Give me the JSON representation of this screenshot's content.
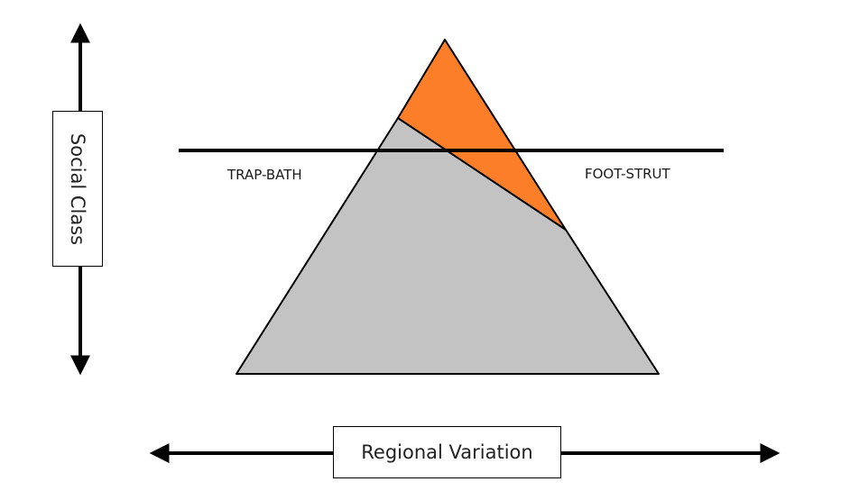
{
  "diagram": {
    "y_axis_label": "Social Class",
    "x_axis_label": "Regional Variation",
    "left_region_label": "TRAP-BATH",
    "right_region_label": "FOOT-STRUT",
    "colors": {
      "triangle_fill": "#c3c3c3",
      "top_region_fill": "#fc7e28",
      "line": "#000000"
    }
  }
}
